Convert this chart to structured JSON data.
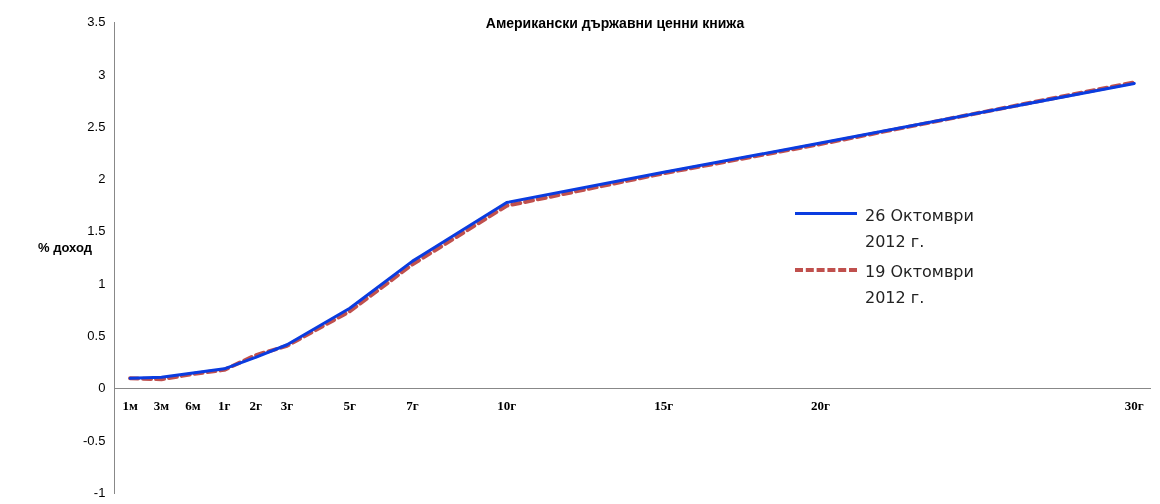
{
  "chart_data": {
    "type": "line",
    "title": "Американски държавни ценни книжа",
    "ylabel": "% доход",
    "categories": [
      "1м",
      "3м",
      "6м",
      "1г",
      "2г",
      "3г",
      null,
      "5г",
      null,
      "7г",
      null,
      null,
      "10г",
      null,
      null,
      null,
      null,
      "15г",
      null,
      null,
      null,
      null,
      "20г",
      null,
      null,
      null,
      null,
      null,
      null,
      null,
      null,
      null,
      "30г"
    ],
    "series": [
      {
        "name": "26 Октомври 2012 г.",
        "color": "#0a3ce0",
        "line_style": "solid",
        "values": [
          0.1,
          0.11,
          0.15,
          0.19,
          0.3,
          0.42,
          null,
          0.77,
          null,
          1.22,
          null,
          null,
          1.78,
          null,
          null,
          null,
          null,
          2.07,
          null,
          null,
          null,
          null,
          2.35,
          null,
          null,
          null,
          null,
          null,
          null,
          null,
          null,
          null,
          2.92
        ]
      },
      {
        "name": "19 Октомври 2012 г.",
        "color": "#c0504d",
        "line_style": "dashed",
        "values": [
          0.1,
          0.09,
          0.14,
          0.18,
          0.32,
          0.41,
          null,
          0.74,
          null,
          1.19,
          null,
          null,
          1.75,
          null,
          null,
          null,
          null,
          2.06,
          null,
          null,
          null,
          null,
          2.34,
          null,
          null,
          null,
          null,
          null,
          null,
          null,
          null,
          null,
          2.93
        ]
      }
    ],
    "ylim": [
      -1,
      3.5
    ],
    "yticks": [
      -1,
      -0.5,
      0,
      0.5,
      1,
      1.5,
      2,
      2.5,
      3,
      3.5
    ],
    "grid": false,
    "legend": "right",
    "marker": "none"
  }
}
